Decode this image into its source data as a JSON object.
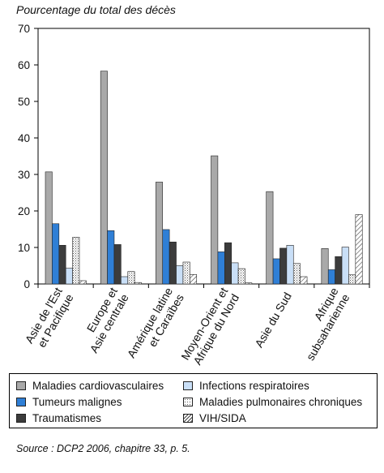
{
  "chart_data": {
    "type": "bar",
    "ylabel": "Pourcentage du total des décès",
    "ylim": [
      0,
      70
    ],
    "yticks": [
      0,
      10,
      20,
      30,
      40,
      50,
      60,
      70
    ],
    "grid": false,
    "legend_position": "bottom",
    "categories": [
      [
        "Asie de l'Est",
        "et Pacifique"
      ],
      [
        "Europe et",
        "Asie centrale"
      ],
      [
        "Amérique latine",
        "et Caraïbes"
      ],
      [
        "Moyen-Orient et",
        "Afrique du Nord"
      ],
      [
        "Asie du Sud"
      ],
      [
        "Afrique",
        "subsaharienne"
      ]
    ],
    "series": [
      {
        "name": "Maladies cardiovasculaires",
        "color": "#a9a9a9",
        "pattern": "solid",
        "values": [
          30.7,
          58.3,
          27.9,
          35.1,
          25.3,
          9.7
        ]
      },
      {
        "name": "Tumeurs malignes",
        "color": "#2f7fd6",
        "pattern": "solid",
        "values": [
          16.5,
          14.6,
          14.9,
          8.8,
          6.9,
          3.9
        ]
      },
      {
        "name": "Traumatismes",
        "color": "#3c3c3c",
        "pattern": "solid",
        "values": [
          10.6,
          10.8,
          11.5,
          11.3,
          9.8,
          7.5
        ]
      },
      {
        "name": "Infections respiratoires",
        "color": "#c9dff7",
        "pattern": "solid",
        "values": [
          4.3,
          2.0,
          5.0,
          5.8,
          10.6,
          10.1
        ]
      },
      {
        "name": "Maladies pulmonaires chroniques",
        "color": "#ffffff",
        "pattern": "dots",
        "values": [
          12.8,
          3.4,
          6.0,
          4.2,
          5.6,
          2.5
        ]
      },
      {
        "name": "VIH/SIDA",
        "color": "#ffffff",
        "pattern": "hatch",
        "values": [
          0.9,
          0.4,
          2.6,
          0.3,
          2.0,
          19.0
        ]
      }
    ]
  },
  "source": "Source : DCP2 2006, chapitre 33, p. 5."
}
